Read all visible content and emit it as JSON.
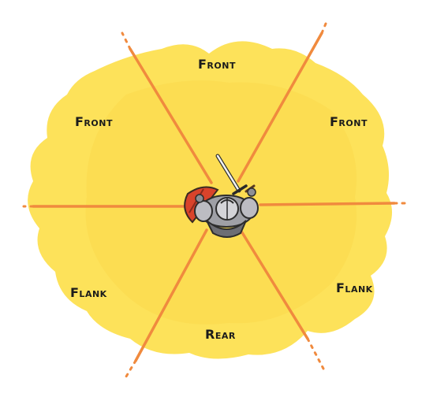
{
  "labels": {
    "front_top": "Front",
    "front_left": "Front",
    "front_right": "Front",
    "flank_left": "Flank",
    "flank_right": "Flank",
    "rear": "Rear"
  },
  "colors": {
    "zone_fill": "#fde25a",
    "zone_inner": "#fbd84c",
    "divider_lines": "#f08a3e",
    "shield": "#d9432b",
    "armor": "#b8b8b8",
    "text": "#1b1b1b"
  },
  "icons": {
    "figure": "armored-knight-with-sword-and-shield-icon"
  }
}
